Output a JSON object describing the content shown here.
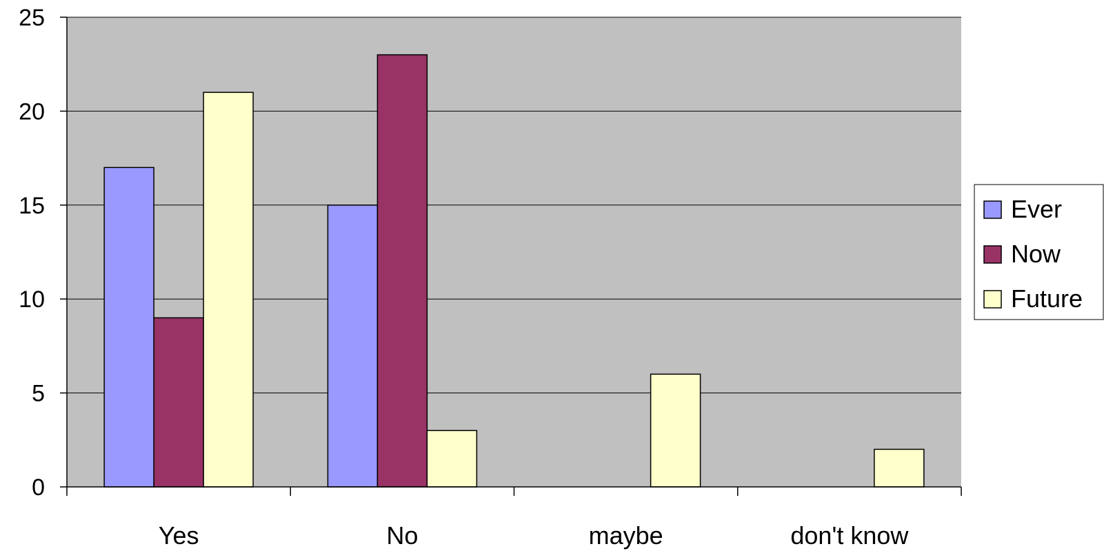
{
  "chart_data": {
    "type": "bar",
    "title": "",
    "xlabel": "",
    "ylabel": "",
    "categories": [
      "Yes",
      "No",
      "maybe",
      "don't know"
    ],
    "series": [
      {
        "name": "Ever",
        "values": [
          17,
          15,
          0,
          0
        ],
        "color": "#9999ff"
      },
      {
        "name": "Now",
        "values": [
          9,
          23,
          0,
          0
        ],
        "color": "#993366"
      },
      {
        "name": "Future",
        "values": [
          21,
          3,
          6,
          2
        ],
        "color": "#ffffcc"
      }
    ],
    "ylim": [
      0,
      25
    ],
    "yticks": [
      0,
      5,
      10,
      15,
      20,
      25
    ],
    "grid": true,
    "plot_background": "#c0c0c0",
    "legend_position": "right"
  }
}
